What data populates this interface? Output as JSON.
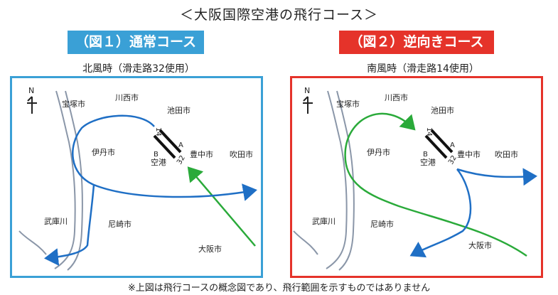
{
  "title": "＜大阪国際空港の飛行コース＞",
  "figure1": {
    "badge": "（図１）通常コース",
    "subtitle": "北風時（滑走路32使用）"
  },
  "figure2": {
    "badge": "（図２）逆向きコース",
    "subtitle": "南風時（滑走路14使用）"
  },
  "map_labels": {
    "north": "N",
    "takarazuka": "宝塚市",
    "kawanishi": "川西市",
    "ikeda": "池田市",
    "itami": "伊丹市",
    "toyonaka": "豊中市",
    "suita": "吹田市",
    "mukogawa": "武庫川",
    "amagasaki": "尼崎市",
    "osaka": "大阪市",
    "airport": "空港",
    "runway_end_a": "A",
    "runway_end_b": "B",
    "runway_14": "14",
    "runway_32": "32"
  },
  "colors": {
    "blue_route": "#1f6fc5",
    "green_route": "#2aaa3a",
    "normal_accent": "#3aa0d6",
    "reverse_accent": "#e5332a"
  },
  "note": "※上図は飛行コースの概念図であり、飛行範囲を示すものではありません"
}
